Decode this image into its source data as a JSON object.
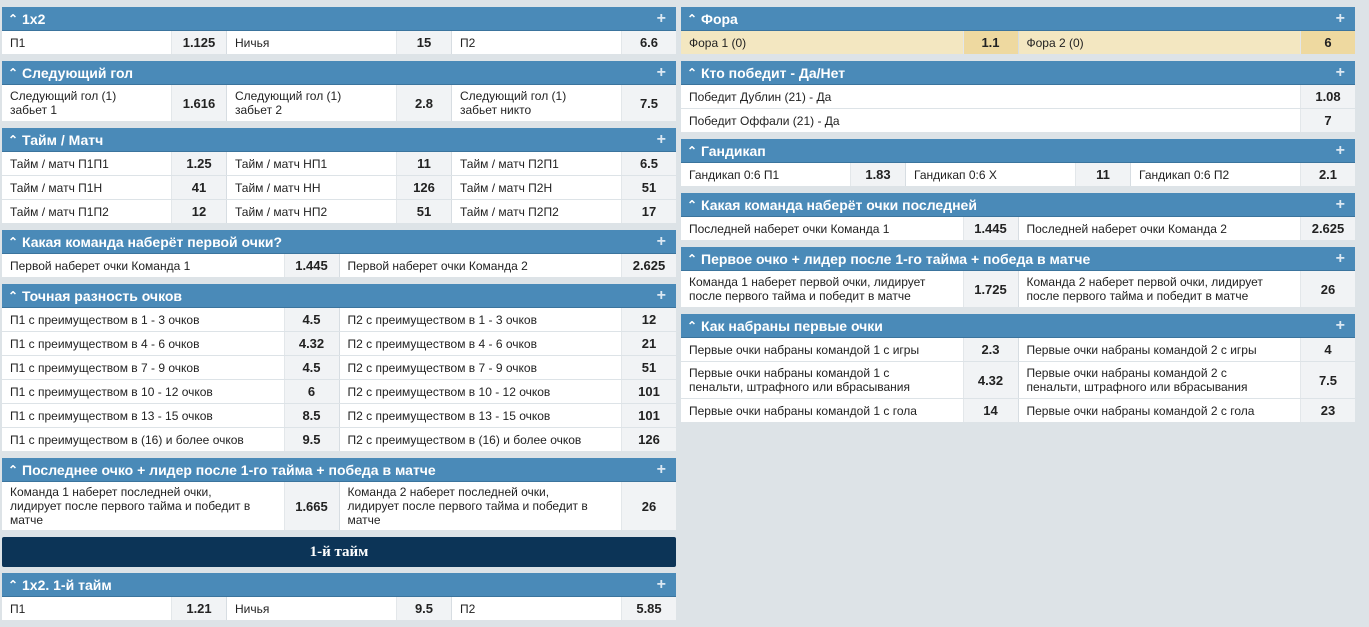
{
  "left_markets": [
    {
      "title": "1x2",
      "cols": [
        3,
        3,
        3
      ],
      "rows": [
        [
          [
            "П1",
            "1.125"
          ],
          [
            "Ничья",
            "15"
          ],
          [
            "П2",
            "6.6"
          ]
        ]
      ]
    },
    {
      "title": "Следующий гол",
      "rows": [
        [
          [
            "Следующий гол (1)\nзабьет 1",
            "1.616"
          ],
          [
            "Следующий гол (1)\nзабьет 2",
            "2.8"
          ],
          [
            "Следующий гол (1)\nзабьет никто",
            "7.5"
          ]
        ]
      ]
    },
    {
      "title": "Тайм / Матч",
      "rows": [
        [
          [
            "Тайм / матч П1П1",
            "1.25"
          ],
          [
            "Тайм / матч НП1",
            "11"
          ],
          [
            "Тайм / матч П2П1",
            "6.5"
          ]
        ],
        [
          [
            "Тайм / матч П1Н",
            "41"
          ],
          [
            "Тайм / матч НН",
            "126"
          ],
          [
            "Тайм / матч П2Н",
            "51"
          ]
        ],
        [
          [
            "Тайм / матч П1П2",
            "12"
          ],
          [
            "Тайм / матч НП2",
            "51"
          ],
          [
            "Тайм / матч П2П2",
            "17"
          ]
        ]
      ]
    },
    {
      "title": "Какая команда наберёт первой очки?",
      "rows": [
        [
          [
            "Первой наберет очки Команда 1",
            "1.445"
          ],
          [
            "Первой наберет очки Команда 2",
            "2.625"
          ]
        ]
      ]
    },
    {
      "title": "Точная разность очков",
      "rows": [
        [
          [
            "П1 с преимуществом в 1 - 3 очков",
            "4.5"
          ],
          [
            "П2 с преимуществом в 1 - 3 очков",
            "12"
          ]
        ],
        [
          [
            "П1 с преимуществом в 4 - 6 очков",
            "4.32"
          ],
          [
            "П2 с преимуществом в 4 - 6 очков",
            "21"
          ]
        ],
        [
          [
            "П1 с преимуществом в 7 - 9 очков",
            "4.5"
          ],
          [
            "П2 с преимуществом в 7 - 9 очков",
            "51"
          ]
        ],
        [
          [
            "П1 с преимуществом в 10 - 12 очков",
            "6"
          ],
          [
            "П2 с преимуществом в 10 - 12 очков",
            "101"
          ]
        ],
        [
          [
            "П1 с преимуществом в 13 - 15 очков",
            "8.5"
          ],
          [
            "П2 с преимуществом в 13 - 15 очков",
            "101"
          ]
        ],
        [
          [
            "П1 с преимуществом в (16) и более очков",
            "9.5"
          ],
          [
            "П2 с преимуществом в (16) и более очков",
            "126"
          ]
        ]
      ]
    },
    {
      "title": "Последнее очко + лидер после 1-го тайма + победа в матче",
      "rows": [
        [
          [
            "Команда 1 наберет последней очки,\nлидирует после первого тайма и победит в\nматче",
            "1.665"
          ],
          [
            "Команда 2 наберет последней очки,\nлидирует после первого тайма и победит в\nматче",
            "26"
          ]
        ]
      ]
    }
  ],
  "section_title": "1-й тайм",
  "left_markets_after": [
    {
      "title": "1x2. 1-й тайм",
      "rows": [
        [
          [
            "П1",
            "1.21"
          ],
          [
            "Ничья",
            "9.5"
          ],
          [
            "П2",
            "5.85"
          ]
        ]
      ]
    }
  ],
  "right_markets": [
    {
      "title": "Фора",
      "highlight": true,
      "rows": [
        [
          [
            "Фора 1 (0)",
            "1.1"
          ],
          [
            "Фора 2 (0)",
            "6"
          ]
        ]
      ]
    },
    {
      "title": "Кто победит - Да/Нет",
      "rows": [
        [
          [
            "Победит Дублин (21) - Да",
            "1.08"
          ]
        ],
        [
          [
            "Победит Оффали (21) - Да",
            "7"
          ]
        ]
      ]
    },
    {
      "title": "Гандикап",
      "rows": [
        [
          [
            "Гандикап 0:6 П1",
            "1.83"
          ],
          [
            "Гандикап 0:6 Х",
            "11"
          ],
          [
            "Гандикап 0:6 П2",
            "2.1"
          ]
        ]
      ]
    },
    {
      "title": "Какая команда наберёт очки последней",
      "rows": [
        [
          [
            "Последней наберет очки Команда 1",
            "1.445"
          ],
          [
            "Последней наберет очки Команда 2",
            "2.625"
          ]
        ]
      ]
    },
    {
      "title": "Первое очко + лидер после 1-го тайма + победа в матче",
      "rows": [
        [
          [
            "Команда 1 наберет первой очки, лидирует\nпосле первого тайма и победит в матче",
            "1.725"
          ],
          [
            "Команда 2 наберет первой очки, лидирует\nпосле первого тайма и победит в матче",
            "26"
          ]
        ]
      ]
    },
    {
      "title": "Как набраны первые очки",
      "rows": [
        [
          [
            "Первые очки набраны командой 1 с игры",
            "2.3"
          ],
          [
            "Первые очки набраны командой 2 с игры",
            "4"
          ]
        ],
        [
          [
            "Первые очки набраны командой 1 с\nпенальти, штрафного или вбрасывания",
            "4.32"
          ],
          [
            "Первые очки набраны командой 2 с\nпенальти, штрафного или вбрасывания",
            "7.5"
          ]
        ],
        [
          [
            "Первые очки набраны командой 1 с гола",
            "14"
          ],
          [
            "Первые очки набраны командой 2 с гола",
            "23"
          ]
        ]
      ]
    }
  ],
  "icons": {
    "collapse": "chevron-up-icon",
    "expand": "plus-icon"
  },
  "colors": {
    "header": "#4a8ab8",
    "section": "#0c3457",
    "highlight": "#f3e7c1"
  }
}
